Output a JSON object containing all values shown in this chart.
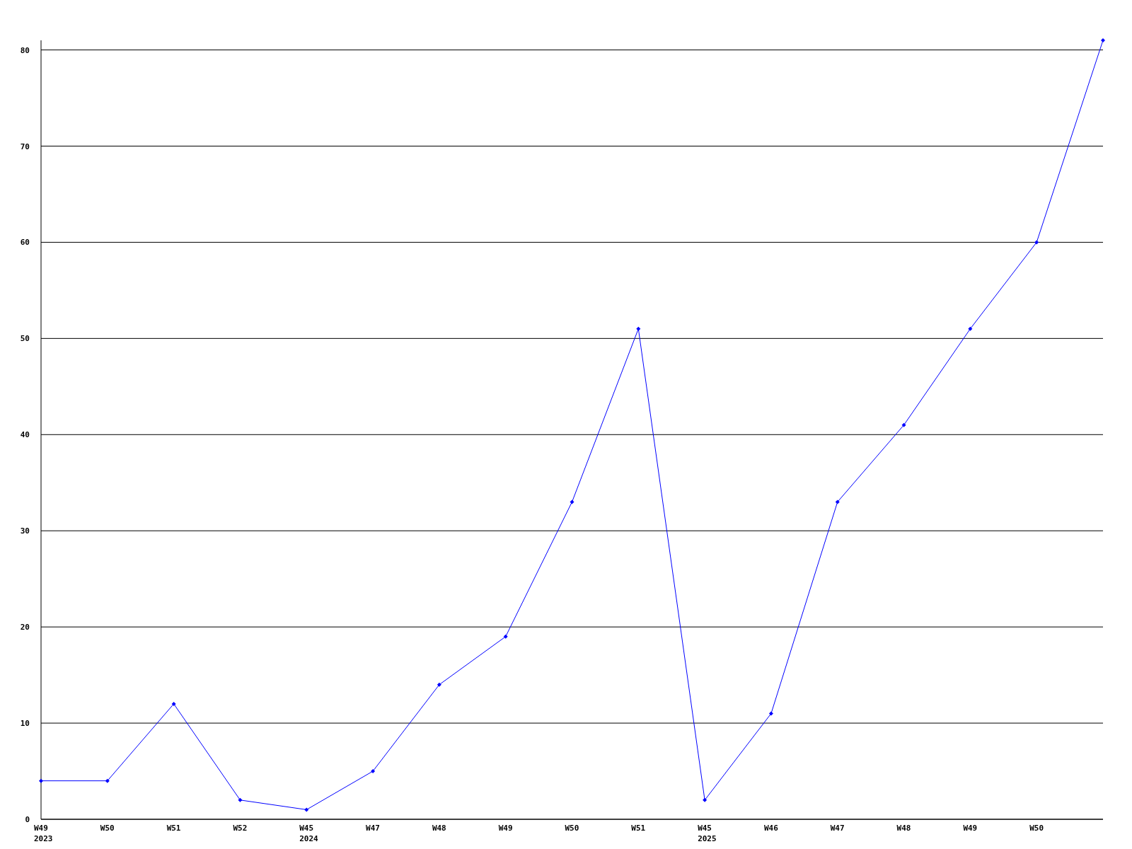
{
  "chart_data": {
    "type": "line",
    "categories": [
      "W49\n2023",
      "W50",
      "W51",
      "W52",
      "W45\n2024",
      "W47",
      "W48",
      "W49",
      "W50",
      "W51",
      "W45\n2025",
      "W46",
      "W47",
      "W48",
      "W49",
      "W50",
      null
    ],
    "series": [
      {
        "color": "#0000ff",
        "values": [
          4,
          4,
          12,
          2,
          1,
          5,
          14,
          19,
          33,
          51,
          2,
          11,
          33,
          41,
          51,
          60,
          81
        ]
      }
    ],
    "ylim": [
      0,
      81
    ],
    "yticks": [
      0,
      10,
      20,
      30,
      40,
      50,
      60,
      70,
      80
    ],
    "grid": "y",
    "marker": "diamond",
    "line_style": "solid"
  }
}
